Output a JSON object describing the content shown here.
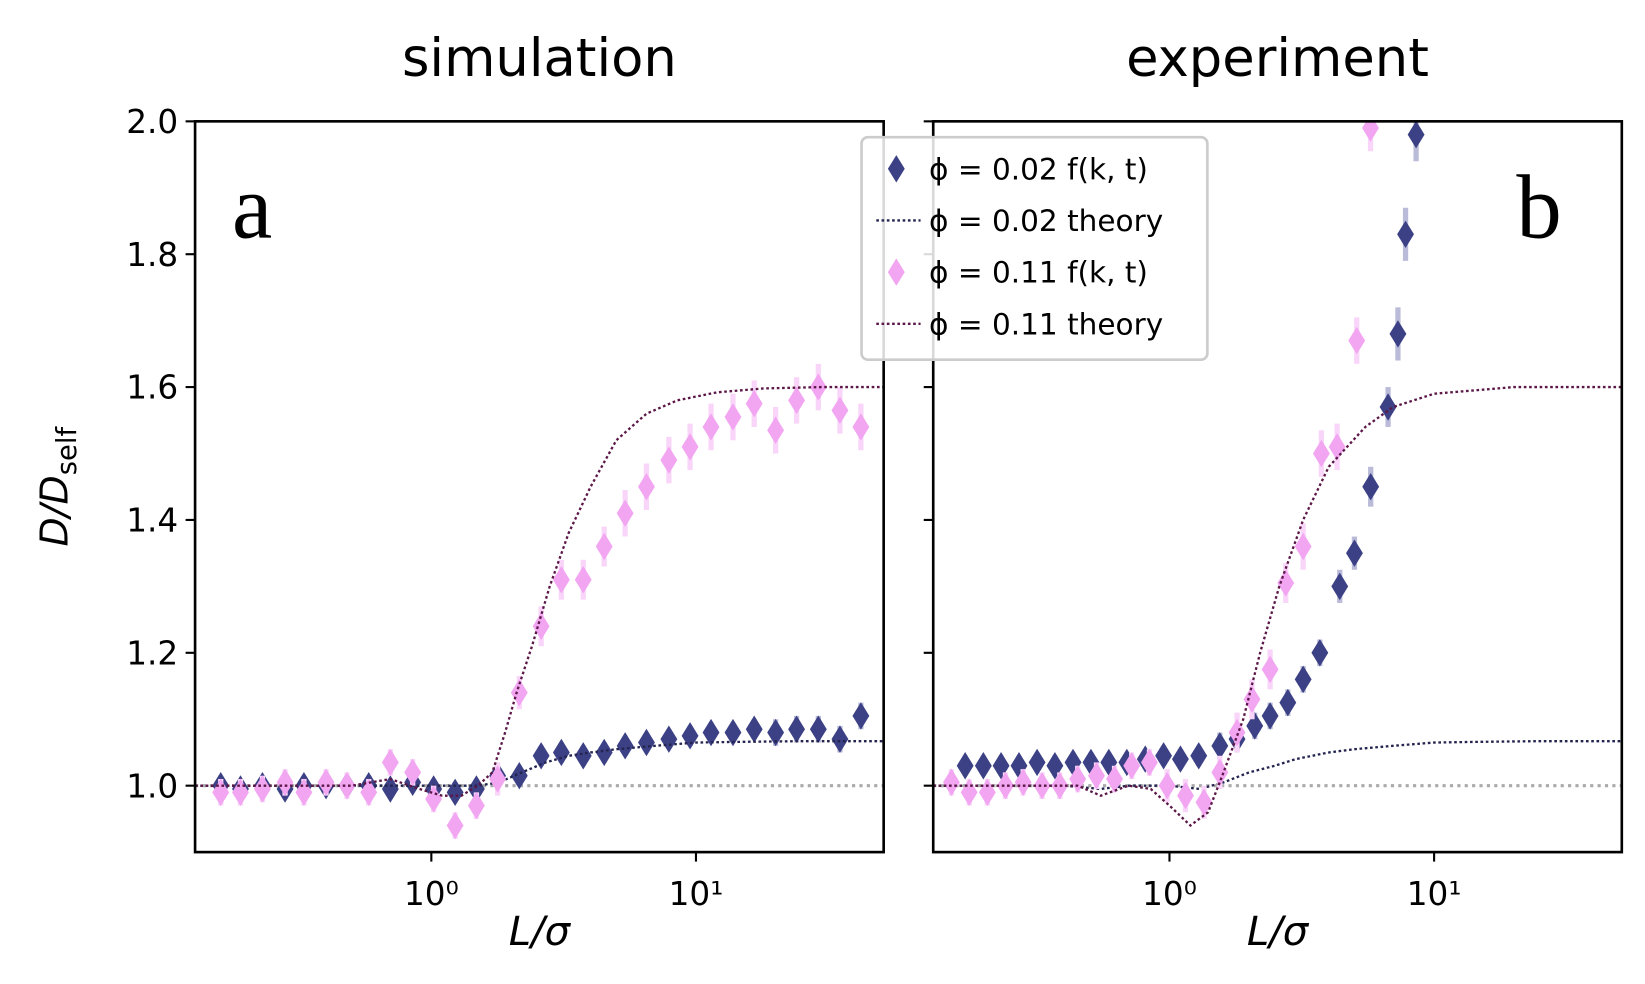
{
  "chart_data": [
    {
      "type": "scatter",
      "title": "simulation",
      "label": "a",
      "label_corner": "upper left",
      "xlabel": "L/σ",
      "ylabel": "D/D",
      "ylabel_sub": "self",
      "xlog": true,
      "xlim": [
        0.128,
        51.2
      ],
      "ylim": [
        0.9,
        2.0
      ],
      "xticks": [
        {
          "value": 1,
          "label": "10⁰"
        },
        {
          "value": 10,
          "label": "10¹"
        }
      ],
      "yticks": [
        {
          "value": 1,
          "label": "1.0"
        },
        1.2,
        1.4,
        1.6,
        1.8,
        {
          "value": 2,
          "label": "2.0"
        }
      ],
      "ytick_labels": true,
      "hline": 1,
      "hline_color": "#aaaaaa",
      "series": [
        {
          "kind": "points",
          "color": "#3c4185",
          "error_color": "#b9bbd8",
          "x": [
            0.16,
            0.19,
            0.23,
            0.28,
            0.33,
            0.4,
            0.48,
            0.58,
            0.7,
            0.85,
            1.02,
            1.23,
            1.48,
            1.78,
            2.15,
            2.6,
            3.1,
            3.75,
            4.5,
            5.4,
            6.5,
            7.9,
            9.5,
            11.4,
            13.8,
            16.6,
            20,
            24,
            29,
            35,
            42
          ],
          "values": [
            1.0,
            0.995,
            1.0,
            0.995,
            1.0,
            1.0,
            1.0,
            1.0,
            0.995,
            1.005,
            0.995,
            0.99,
            0.995,
            1.015,
            1.015,
            1.045,
            1.05,
            1.045,
            1.05,
            1.06,
            1.065,
            1.07,
            1.075,
            1.08,
            1.08,
            1.085,
            1.08,
            1.085,
            1.085,
            1.07,
            1.105
          ],
          "errors": [
            0.015,
            0.015,
            0.015,
            0.015,
            0.015,
            0.015,
            0.015,
            0.015,
            0.015,
            0.015,
            0.015,
            0.015,
            0.015,
            0.015,
            0.015,
            0.015,
            0.015,
            0.015,
            0.015,
            0.015,
            0.015,
            0.015,
            0.015,
            0.015,
            0.015,
            0.015,
            0.02,
            0.02,
            0.02,
            0.02,
            0.02
          ]
        },
        {
          "kind": "line",
          "color": "#23244f",
          "linestyle": "dotted",
          "x": [
            0.128,
            0.5,
            1.0,
            1.5,
            1.8,
            2.2,
            2.7,
            3.3,
            4,
            5,
            7,
            10,
            15,
            25,
            51.2
          ],
          "values": [
            1.0,
            1.0,
            1.0,
            1.0,
            1.005,
            1.02,
            1.035,
            1.045,
            1.05,
            1.055,
            1.06,
            1.065,
            1.066,
            1.067,
            1.067
          ]
        },
        {
          "kind": "points",
          "color": "#f2a6f2",
          "error_color": "#f9d6f9",
          "x": [
            0.16,
            0.19,
            0.23,
            0.28,
            0.33,
            0.4,
            0.48,
            0.58,
            0.7,
            0.85,
            1.02,
            1.23,
            1.48,
            1.78,
            2.15,
            2.6,
            3.1,
            3.75,
            4.5,
            5.4,
            6.5,
            7.9,
            9.5,
            11.4,
            13.8,
            16.6,
            20,
            24,
            29,
            35,
            42
          ],
          "values": [
            0.99,
            0.99,
            0.995,
            1.005,
            0.99,
            1.005,
            1.0,
            0.99,
            1.035,
            1.02,
            0.98,
            0.94,
            0.97,
            1.01,
            1.14,
            1.24,
            1.31,
            1.31,
            1.36,
            1.41,
            1.45,
            1.49,
            1.51,
            1.54,
            1.555,
            1.575,
            1.535,
            1.58,
            1.6,
            1.565,
            1.54
          ],
          "errors": [
            0.02,
            0.02,
            0.02,
            0.02,
            0.02,
            0.02,
            0.02,
            0.02,
            0.02,
            0.02,
            0.02,
            0.02,
            0.02,
            0.025,
            0.025,
            0.03,
            0.03,
            0.03,
            0.03,
            0.035,
            0.035,
            0.035,
            0.035,
            0.035,
            0.035,
            0.035,
            0.035,
            0.035,
            0.035,
            0.035,
            0.035
          ]
        },
        {
          "kind": "line",
          "color": "#5b1747",
          "linestyle": "dotted",
          "x": [
            0.128,
            0.3,
            0.5,
            0.7,
            0.9,
            1.1,
            1.3,
            1.5,
            1.7,
            1.9,
            2.1,
            2.4,
            2.8,
            3.3,
            4,
            5,
            6.5,
            8.5,
            12,
            18,
            30,
            51.2
          ],
          "values": [
            1.0,
            1.0,
            1.0,
            1.01,
            0.995,
            0.985,
            0.985,
            1.0,
            1.02,
            1.08,
            1.14,
            1.21,
            1.3,
            1.38,
            1.45,
            1.52,
            1.56,
            1.58,
            1.592,
            1.598,
            1.6,
            1.6
          ]
        }
      ]
    },
    {
      "type": "scatter",
      "title": "experiment",
      "label": "b",
      "label_corner": "upper right",
      "xlabel": "L/σ",
      "xlog": true,
      "xlim": [
        0.128,
        51.2
      ],
      "ylim": [
        0.9,
        2.0
      ],
      "xticks": [
        {
          "value": 1,
          "label": "10⁰"
        },
        {
          "value": 10,
          "label": "10¹"
        }
      ],
      "yticks": [
        1,
        1.2,
        1.4,
        1.6,
        1.8,
        2
      ],
      "ytick_labels": false,
      "hline": 1,
      "hline_color": "#aaaaaa",
      "legend": "upper left",
      "series": [
        {
          "kind": "points",
          "name": "ϕ = 0.02 f(k, t)",
          "color": "#3c4185",
          "error_color": "#b9bbd8",
          "x": [
            0.169,
            0.198,
            0.231,
            0.27,
            0.316,
            0.369,
            0.432,
            0.505,
            0.59,
            0.69,
            0.81,
            0.95,
            1.1,
            1.29,
            1.55,
            1.8,
            2.1,
            2.4,
            2.8,
            3.2,
            3.7,
            4.4,
            5.0,
            5.76,
            6.7,
            7.3,
            7.8,
            8.55
          ],
          "values": [
            1.03,
            1.03,
            1.03,
            1.03,
            1.035,
            1.03,
            1.035,
            1.035,
            1.035,
            1.035,
            1.04,
            1.045,
            1.04,
            1.045,
            1.06,
            1.07,
            1.09,
            1.105,
            1.125,
            1.16,
            1.2,
            1.3,
            1.35,
            1.45,
            1.57,
            1.68,
            1.83,
            1.98
          ],
          "errors": [
            0.015,
            0.015,
            0.015,
            0.015,
            0.015,
            0.015,
            0.015,
            0.015,
            0.015,
            0.015,
            0.015,
            0.015,
            0.015,
            0.015,
            0.02,
            0.02,
            0.02,
            0.02,
            0.02,
            0.02,
            0.02,
            0.025,
            0.025,
            0.03,
            0.03,
            0.04,
            0.04,
            0.04
          ]
        },
        {
          "kind": "line",
          "name": "ϕ = 0.02 theory",
          "color": "#23244f",
          "linestyle": "dotted",
          "x": [
            0.128,
            0.4,
            0.55,
            0.7,
            1.0,
            1.3,
            1.6,
            2.0,
            2.5,
            3,
            4,
            5,
            7,
            10,
            15,
            25,
            51.2
          ],
          "values": [
            1.0,
            1.0,
            0.995,
            1.0,
            1.0,
            0.995,
            1.005,
            1.02,
            1.03,
            1.04,
            1.05,
            1.055,
            1.06,
            1.065,
            1.066,
            1.067,
            1.067
          ]
        },
        {
          "kind": "points",
          "name": "ϕ = 0.11 f(k, t)",
          "color": "#f2a6f2",
          "error_color": "#f9d6f9",
          "x": [
            0.15,
            0.175,
            0.205,
            0.24,
            0.28,
            0.33,
            0.385,
            0.45,
            0.53,
            0.62,
            0.72,
            0.84,
            0.98,
            1.15,
            1.35,
            1.55,
            1.8,
            2.05,
            2.4,
            2.75,
            3.2,
            3.75,
            4.3,
            5.1,
            5.75
          ],
          "values": [
            1.005,
            0.99,
            0.99,
            1.0,
            1.005,
            1.0,
            1.0,
            1.01,
            1.015,
            1.01,
            1.03,
            1.035,
            1.0,
            0.985,
            0.975,
            1.02,
            1.08,
            1.13,
            1.175,
            1.305,
            1.36,
            1.5,
            1.51,
            1.67,
            1.99
          ],
          "errors": [
            0.02,
            0.02,
            0.02,
            0.02,
            0.02,
            0.02,
            0.02,
            0.02,
            0.02,
            0.02,
            0.02,
            0.02,
            0.025,
            0.025,
            0.025,
            0.025,
            0.03,
            0.03,
            0.03,
            0.03,
            0.035,
            0.035,
            0.035,
            0.035,
            0.035
          ]
        },
        {
          "kind": "line",
          "name": "ϕ = 0.11 theory",
          "color": "#5b1747",
          "linestyle": "dotted",
          "x": [
            0.128,
            0.3,
            0.45,
            0.55,
            0.7,
            0.85,
            1.0,
            1.2,
            1.4,
            1.6,
            1.9,
            2.2,
            2.6,
            3.2,
            4,
            5.5,
            7,
            10,
            20,
            51.2
          ],
          "values": [
            1.0,
            1.0,
            1.0,
            0.985,
            1.0,
            0.995,
            0.97,
            0.94,
            0.96,
            1.02,
            1.1,
            1.2,
            1.3,
            1.4,
            1.48,
            1.54,
            1.57,
            1.59,
            1.6,
            1.6
          ]
        }
      ]
    }
  ]
}
